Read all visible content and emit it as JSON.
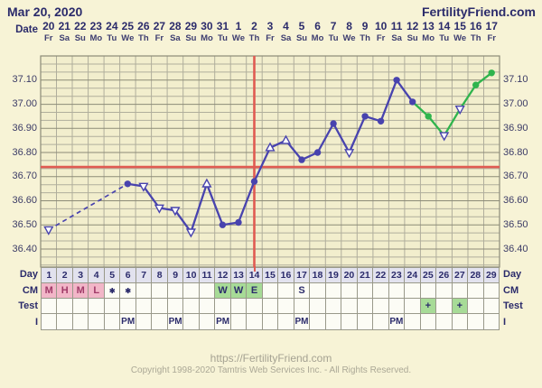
{
  "header": {
    "date": "Mar 20, 2020",
    "brand": "FertilityFriend.com"
  },
  "date_row": {
    "label": "Date",
    "dates": [
      "20",
      "21",
      "22",
      "23",
      "24",
      "25",
      "26",
      "27",
      "28",
      "29",
      "30",
      "31",
      "1",
      "2",
      "3",
      "4",
      "5",
      "6",
      "7",
      "8",
      "9",
      "10",
      "11",
      "12",
      "13",
      "14",
      "15",
      "16",
      "17"
    ],
    "weekdays": [
      "Fr",
      "Sa",
      "Su",
      "Mo",
      "Tu",
      "We",
      "Th",
      "Fr",
      "Sa",
      "Su",
      "Mo",
      "Tu",
      "We",
      "Th",
      "Fr",
      "Sa",
      "Su",
      "Mo",
      "Tu",
      "We",
      "Th",
      "Fr",
      "Sa",
      "Su",
      "Mo",
      "Tu",
      "We",
      "Th",
      "Fr"
    ]
  },
  "chart_data": {
    "type": "line",
    "title": "Basal body temperature chart (Celsius)",
    "y_tick_labels": [
      "37.10",
      "37.00",
      "36.90",
      "36.80",
      "36.70",
      "36.60",
      "36.50",
      "36.40"
    ],
    "ylim": [
      36.33,
      37.2
    ],
    "days": 29,
    "coverline_temp": 36.74,
    "ovulation_day": 14,
    "grid": "on",
    "points": [
      {
        "day": 1,
        "temp": 36.48,
        "marker": "triangle-down",
        "color": "purple"
      },
      {
        "day": 6,
        "temp": 36.67,
        "marker": "circle",
        "color": "purple"
      },
      {
        "day": 7,
        "temp": 36.66,
        "marker": "triangle-down",
        "color": "purple"
      },
      {
        "day": 8,
        "temp": 36.57,
        "marker": "triangle-down",
        "color": "purple"
      },
      {
        "day": 9,
        "temp": 36.56,
        "marker": "triangle-down",
        "color": "purple"
      },
      {
        "day": 10,
        "temp": 36.47,
        "marker": "triangle-down",
        "color": "purple"
      },
      {
        "day": 11,
        "temp": 36.67,
        "marker": "triangle-up",
        "color": "purple"
      },
      {
        "day": 12,
        "temp": 36.5,
        "marker": "circle",
        "color": "purple"
      },
      {
        "day": 13,
        "temp": 36.51,
        "marker": "circle",
        "color": "purple"
      },
      {
        "day": 14,
        "temp": 36.68,
        "marker": "circle",
        "color": "purple"
      },
      {
        "day": 15,
        "temp": 36.82,
        "marker": "triangle-up",
        "color": "purple"
      },
      {
        "day": 16,
        "temp": 36.85,
        "marker": "triangle-up",
        "color": "purple"
      },
      {
        "day": 17,
        "temp": 36.77,
        "marker": "circle",
        "color": "purple"
      },
      {
        "day": 18,
        "temp": 36.8,
        "marker": "circle",
        "color": "purple"
      },
      {
        "day": 19,
        "temp": 36.92,
        "marker": "circle",
        "color": "purple"
      },
      {
        "day": 20,
        "temp": 36.8,
        "marker": "triangle-down",
        "color": "purple"
      },
      {
        "day": 21,
        "temp": 36.95,
        "marker": "circle",
        "color": "purple"
      },
      {
        "day": 22,
        "temp": 36.93,
        "marker": "circle",
        "color": "purple"
      },
      {
        "day": 23,
        "temp": 37.1,
        "marker": "circle",
        "color": "purple"
      },
      {
        "day": 24,
        "temp": 37.01,
        "marker": "circle",
        "color": "purple"
      },
      {
        "day": 25,
        "temp": 36.95,
        "marker": "circle",
        "color": "green"
      },
      {
        "day": 26,
        "temp": 36.87,
        "marker": "triangle-down",
        "color": "green"
      },
      {
        "day": 27,
        "temp": 36.98,
        "marker": "triangle-down",
        "color": "green"
      },
      {
        "day": 28,
        "temp": 37.08,
        "marker": "circle",
        "color": "green"
      },
      {
        "day": 29,
        "temp": 37.13,
        "marker": "circle",
        "color": "green"
      }
    ]
  },
  "table": {
    "row_labels": [
      "Day",
      "CM",
      "Test",
      "I"
    ],
    "day_numbers": [
      "1",
      "2",
      "3",
      "4",
      "5",
      "6",
      "7",
      "8",
      "9",
      "10",
      "11",
      "12",
      "13",
      "14",
      "15",
      "16",
      "17",
      "18",
      "19",
      "20",
      "21",
      "22",
      "23",
      "24",
      "25",
      "26",
      "27",
      "28",
      "29"
    ],
    "cm_cells": [
      {
        "text": "M",
        "bg": "pink"
      },
      {
        "text": "H",
        "bg": "pink"
      },
      {
        "text": "M",
        "bg": "pink"
      },
      {
        "text": "L",
        "bg": "pink"
      },
      {
        "text": "✱"
      },
      {
        "text": "✱"
      },
      {},
      {},
      {},
      {},
      {},
      {
        "text": "W",
        "bg": "green"
      },
      {
        "text": "W",
        "bg": "green"
      },
      {
        "text": "E",
        "bg": "green"
      },
      {},
      {},
      {
        "text": "S"
      },
      {},
      {},
      {},
      {},
      {},
      {},
      {},
      {},
      {},
      {},
      {},
      {}
    ],
    "test_cells": [
      {},
      {},
      {},
      {},
      {},
      {},
      {},
      {},
      {},
      {},
      {},
      {},
      {},
      {},
      {},
      {},
      {},
      {},
      {},
      {},
      {},
      {},
      {},
      {},
      {
        "text": "+",
        "bg": "green"
      },
      {},
      {
        "text": "+",
        "bg": "green"
      },
      {},
      {}
    ],
    "i_cells": [
      {},
      {},
      {},
      {},
      {},
      {
        "text": "PM"
      },
      {},
      {},
      {
        "text": "PM"
      },
      {},
      {},
      {
        "text": "PM"
      },
      {},
      {},
      {},
      {},
      {
        "text": "PM"
      },
      {},
      {},
      {},
      {},
      {},
      {
        "text": "PM"
      },
      {},
      {},
      {},
      {},
      {},
      {}
    ]
  },
  "colors": {
    "page_bg": "#f7f3d6",
    "chart_bg": "#f2eecd",
    "grid": "#b0ae9c",
    "grid_major": "#8c8b77",
    "purple": "#4843ae",
    "green": "#2fb44d",
    "red": "#e05b52",
    "navy": "#2b2b6b",
    "maroon": "#a03a68",
    "pink": "#f2b6c8",
    "cell_green": "#a7db97",
    "day_cell": "#e2e2ee",
    "cell": "#fcfcf5"
  },
  "footer": {
    "url": "https://FertilityFriend.com",
    "copyright": "Copyright 1998-2020 Tamtris Web Services Inc. - All Rights Reserved."
  }
}
